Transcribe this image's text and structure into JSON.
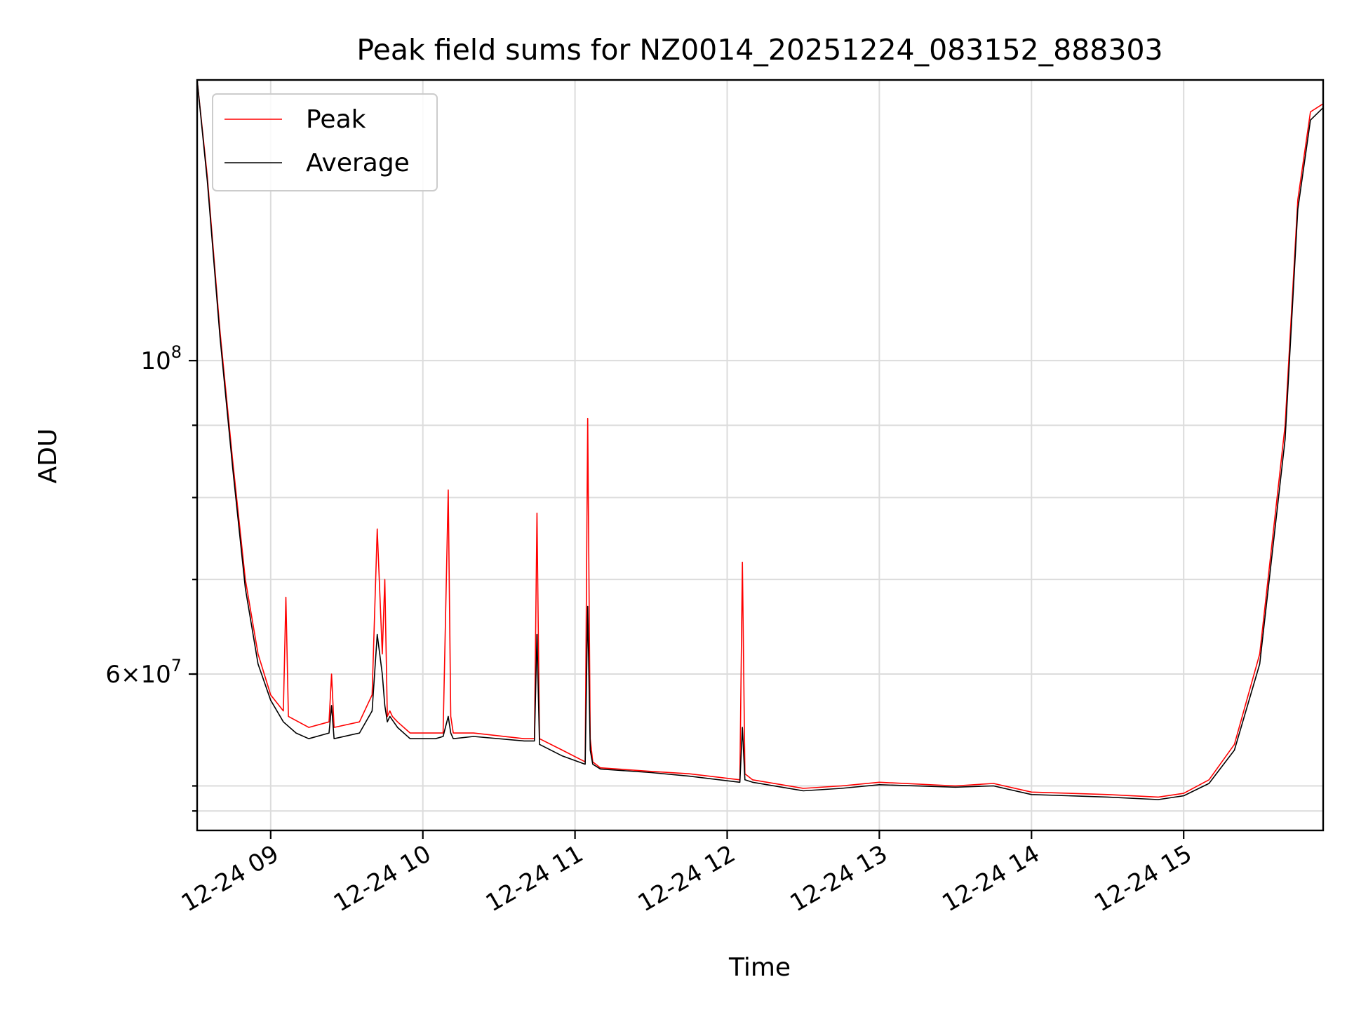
{
  "chart_data": {
    "type": "line",
    "title": "Peak field sums for NZ0014_20251224_083152_888303",
    "xlabel": "Time",
    "ylabel": "ADU",
    "x_scale": "time",
    "y_scale": "log",
    "grid": true,
    "legend_position": "top-left",
    "xlim": [
      "2025-12-24 08:31",
      "2025-12-24 15:55"
    ],
    "ylim": [
      46500000,
      158000000
    ],
    "x_ticks": [
      {
        "value": "2025-12-24 09:00",
        "label": "12-24 09"
      },
      {
        "value": "2025-12-24 10:00",
        "label": "12-24 10"
      },
      {
        "value": "2025-12-24 11:00",
        "label": "12-24 11"
      },
      {
        "value": "2025-12-24 12:00",
        "label": "12-24 12"
      },
      {
        "value": "2025-12-24 13:00",
        "label": "12-24 13"
      },
      {
        "value": "2025-12-24 14:00",
        "label": "12-24 14"
      },
      {
        "value": "2025-12-24 15:00",
        "label": "12-24 15"
      }
    ],
    "y_major_ticks": [
      {
        "value": 100000000,
        "base": "10",
        "exp": "8"
      },
      {
        "value": 60000000,
        "mant": "6",
        "base": "10",
        "exp": "7"
      }
    ],
    "y_minor_ticks": [
      48000000,
      50000000,
      60000000,
      70000000,
      80000000,
      90000000
    ],
    "series": [
      {
        "name": "Peak",
        "color": "#ff0000",
        "x": [
          "2025-12-24 08:31",
          "2025-12-24 08:35",
          "2025-12-24 08:40",
          "2025-12-24 08:45",
          "2025-12-24 08:50",
          "2025-12-24 08:55",
          "2025-12-24 09:00",
          "2025-12-24 09:05",
          "2025-12-24 09:06",
          "2025-12-24 09:07",
          "2025-12-24 09:15",
          "2025-12-24 09:23",
          "2025-12-24 09:24",
          "2025-12-24 09:25",
          "2025-12-24 09:35",
          "2025-12-24 09:40",
          "2025-12-24 09:42",
          "2025-12-24 09:44",
          "2025-12-24 09:45",
          "2025-12-24 09:46",
          "2025-12-24 09:47",
          "2025-12-24 09:48",
          "2025-12-24 09:50",
          "2025-12-24 09:55",
          "2025-12-24 10:05",
          "2025-12-24 10:08",
          "2025-12-24 10:10",
          "2025-12-24 10:11",
          "2025-12-24 10:12",
          "2025-12-24 10:20",
          "2025-12-24 10:40",
          "2025-12-24 10:44",
          "2025-12-24 10:45",
          "2025-12-24 10:46",
          "2025-12-24 10:55",
          "2025-12-24 11:04",
          "2025-12-24 11:05",
          "2025-12-24 11:06",
          "2025-12-24 11:07",
          "2025-12-24 11:10",
          "2025-12-24 11:30",
          "2025-12-24 11:45",
          "2025-12-24 12:05",
          "2025-12-24 12:06",
          "2025-12-24 12:07",
          "2025-12-24 12:10",
          "2025-12-24 12:30",
          "2025-12-24 12:45",
          "2025-12-24 13:00",
          "2025-12-24 13:30",
          "2025-12-24 13:45",
          "2025-12-24 14:00",
          "2025-12-24 14:30",
          "2025-12-24 14:50",
          "2025-12-24 15:00",
          "2025-12-24 15:10",
          "2025-12-24 15:20",
          "2025-12-24 15:30",
          "2025-12-24 15:40",
          "2025-12-24 15:45",
          "2025-12-24 15:50",
          "2025-12-24 15:55"
        ],
        "values": [
          158000000,
          135000000,
          105000000,
          85000000,
          70000000,
          62000000,
          58000000,
          56500000,
          68000000,
          56000000,
          55000000,
          55500000,
          60000000,
          55000000,
          55500000,
          58000000,
          76000000,
          62000000,
          70000000,
          56000000,
          56500000,
          56000000,
          55500000,
          54500000,
          54500000,
          54500000,
          81000000,
          56000000,
          54500000,
          54500000,
          54000000,
          54000000,
          78000000,
          54000000,
          53000000,
          52000000,
          91000000,
          54000000,
          52000000,
          51500000,
          51200000,
          51000000,
          50500000,
          72000000,
          51000000,
          50500000,
          49800000,
          50000000,
          50300000,
          50000000,
          50200000,
          49500000,
          49300000,
          49100000,
          49400000,
          50500000,
          53500000,
          62000000,
          90000000,
          130000000,
          150000000,
          152000000
        ]
      },
      {
        "name": "Average",
        "color": "#000000",
        "x": [
          "2025-12-24 08:31",
          "2025-12-24 08:35",
          "2025-12-24 08:40",
          "2025-12-24 08:45",
          "2025-12-24 08:50",
          "2025-12-24 08:55",
          "2025-12-24 09:00",
          "2025-12-24 09:05",
          "2025-12-24 09:10",
          "2025-12-24 09:15",
          "2025-12-24 09:23",
          "2025-12-24 09:24",
          "2025-12-24 09:25",
          "2025-12-24 09:35",
          "2025-12-24 09:40",
          "2025-12-24 09:42",
          "2025-12-24 09:44",
          "2025-12-24 09:45",
          "2025-12-24 09:46",
          "2025-12-24 09:47",
          "2025-12-24 09:50",
          "2025-12-24 09:55",
          "2025-12-24 10:05",
          "2025-12-24 10:08",
          "2025-12-24 10:10",
          "2025-12-24 10:11",
          "2025-12-24 10:12",
          "2025-12-24 10:20",
          "2025-12-24 10:40",
          "2025-12-24 10:44",
          "2025-12-24 10:45",
          "2025-12-24 10:46",
          "2025-12-24 10:55",
          "2025-12-24 11:04",
          "2025-12-24 11:05",
          "2025-12-24 11:06",
          "2025-12-24 11:07",
          "2025-12-24 11:10",
          "2025-12-24 11:30",
          "2025-12-24 11:45",
          "2025-12-24 12:05",
          "2025-12-24 12:06",
          "2025-12-24 12:07",
          "2025-12-24 12:10",
          "2025-12-24 12:30",
          "2025-12-24 12:45",
          "2025-12-24 13:00",
          "2025-12-24 13:30",
          "2025-12-24 13:45",
          "2025-12-24 14:00",
          "2025-12-24 14:30",
          "2025-12-24 14:50",
          "2025-12-24 15:00",
          "2025-12-24 15:10",
          "2025-12-24 15:20",
          "2025-12-24 15:30",
          "2025-12-24 15:40",
          "2025-12-24 15:45",
          "2025-12-24 15:50",
          "2025-12-24 15:55"
        ],
        "values": [
          158000000,
          134000000,
          104000000,
          84000000,
          69000000,
          61000000,
          57500000,
          55500000,
          54500000,
          54000000,
          54500000,
          57000000,
          54000000,
          54500000,
          56500000,
          64000000,
          60000000,
          57000000,
          55500000,
          56000000,
          55000000,
          54000000,
          54000000,
          54200000,
          56000000,
          54500000,
          54000000,
          54200000,
          53800000,
          53800000,
          64000000,
          53500000,
          52500000,
          51800000,
          67000000,
          53000000,
          51800000,
          51400000,
          51100000,
          50800000,
          50300000,
          55000000,
          50500000,
          50300000,
          49600000,
          49800000,
          50100000,
          49900000,
          50000000,
          49300000,
          49100000,
          48900000,
          49200000,
          50200000,
          53000000,
          61000000,
          88000000,
          128000000,
          148000000,
          151000000
        ]
      }
    ]
  }
}
